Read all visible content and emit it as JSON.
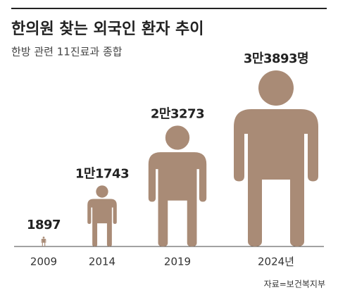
{
  "chart_data": {
    "type": "pictogram",
    "title": "한의원 찾는 외국인 환자 추이",
    "subtitle": "한방 관련 11진료과 종합",
    "categories": [
      "2009",
      "2014",
      "2019",
      "2024년"
    ],
    "values": [
      1897,
      11743,
      23273,
      33893
    ],
    "value_labels": [
      "1897",
      "1만1743",
      "2만3273",
      "3만3893명"
    ],
    "color": "#a98b76",
    "source": "자료=보건복지부"
  }
}
